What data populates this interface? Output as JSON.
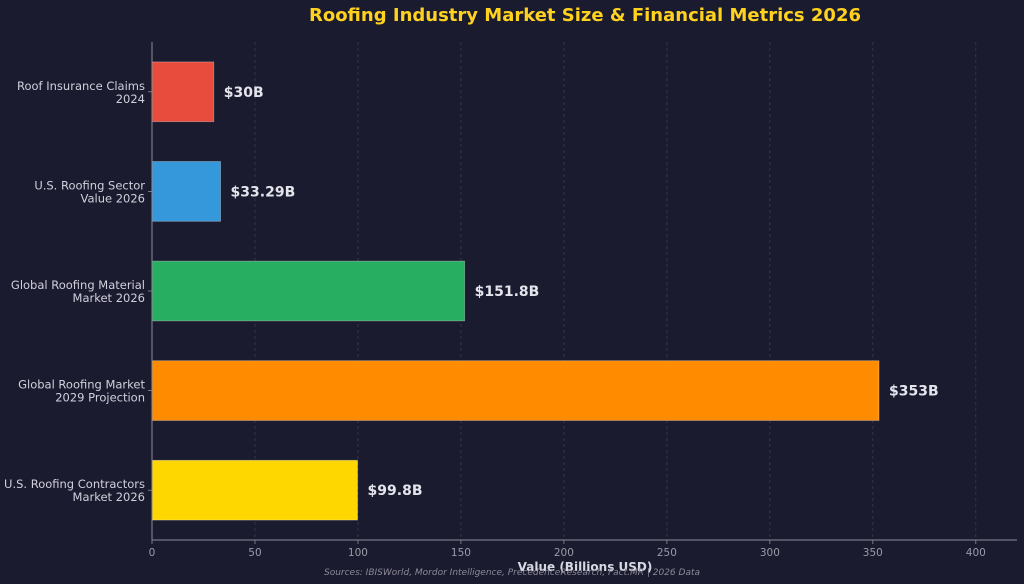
{
  "chart_data": {
    "type": "bar",
    "orientation": "horizontal",
    "title": "Roofing Industry Market Size & Financial Metrics 2026",
    "categories": [
      [
        "Roof Insurance Claims",
        "2024"
      ],
      [
        "U.S. Roofing Sector",
        "Value 2026"
      ],
      [
        "Global Roofing Material",
        "Market 2026"
      ],
      [
        "Global Roofing Market",
        "2029 Projection"
      ],
      [
        "U.S. Roofing Contractors",
        "Market 2026"
      ]
    ],
    "values": [
      30,
      33.29,
      151.8,
      353,
      99.8
    ],
    "value_labels": [
      "$30B",
      "$33.29B",
      "$151.8B",
      "$353B",
      "$99.8B"
    ],
    "colors": [
      "#e74c3c",
      "#3498db",
      "#27ae60",
      "#ff8c00",
      "#ffd700"
    ],
    "xlabel": "Value (Billions USD)",
    "ylabel": "",
    "xlim": [
      0,
      420
    ],
    "xticks": [
      0,
      50,
      100,
      150,
      200,
      250,
      300,
      350,
      400
    ],
    "grid": "vertical dashed",
    "source_note": "Sources: IBISWorld, Mordor Intelligence, PrecedenceResearch, Fact.MR | 2026 Data"
  },
  "colors": {
    "background": "#1b1b2f",
    "title": "#ffd21f",
    "axis": "#8c8c9a",
    "grid": "#3a3a55"
  }
}
